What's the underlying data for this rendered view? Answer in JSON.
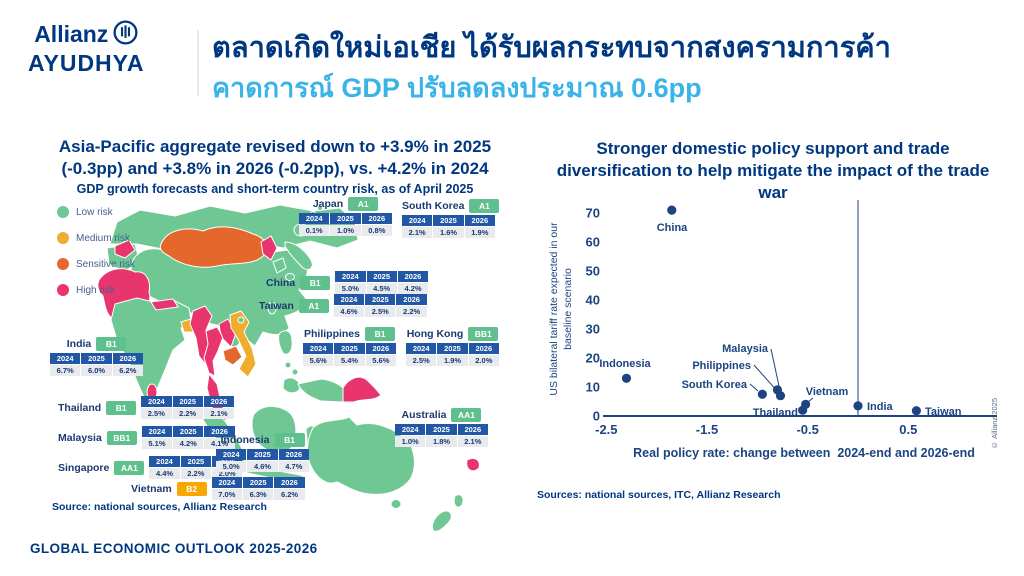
{
  "header": {
    "logo_line1": "Allianz",
    "logo_line2": "AYUDHYA",
    "title_line1": "ตลาดเกิดใหม่เอเชีย ได้รับผลกระทบจากสงครามการค้า",
    "title_line2": "คาดการณ์ GDP ปรับลดลงประมาณ 0.6pp"
  },
  "colors": {
    "navy": "#003781",
    "light_blue": "#3ab3e8",
    "chart_navy": "#1d4480",
    "table_header_blue": "#2157a4",
    "table_value_bg": "#e9eaee",
    "badge_green": "#5fc08d",
    "badge_amber": "#f6a800",
    "map_green": "#6fc894",
    "map_amber": "#f0ad2d",
    "map_orange": "#e4682c",
    "map_pink": "#e8356d"
  },
  "left_panel": {
    "title": "Asia-Pacific aggregate revised down to +3.9% in 2025 (-0.3pp) and +3.8% in 2026 (-0.2pp), vs. +4.2% in 2024",
    "subtitle": "GDP growth forecasts and short-term country risk, as of April 2025",
    "legend": [
      {
        "label": "Low risk",
        "color": "#6fc894"
      },
      {
        "label": "Medium risk",
        "color": "#f0ad2d"
      },
      {
        "label": "Sensitive risk",
        "color": "#e4682c"
      },
      {
        "label": "High risk",
        "color": "#e8356d"
      }
    ],
    "table_years": [
      "2024",
      "2025",
      "2026"
    ],
    "countries": [
      {
        "id": "japan",
        "name": "Japan",
        "rating": "A1",
        "rating_color": "green",
        "values": [
          "0.1%",
          "1.0%",
          "0.8%"
        ]
      },
      {
        "id": "south_korea",
        "name": "South Korea",
        "rating": "A1",
        "rating_color": "green",
        "values": [
          "2.1%",
          "1.6%",
          "1.9%"
        ]
      },
      {
        "id": "china",
        "name": "China",
        "rating": "B1",
        "rating_color": "green",
        "values": [
          "5.0%",
          "4.5%",
          "4.2%"
        ]
      },
      {
        "id": "taiwan",
        "name": "Taiwan",
        "rating": "A1",
        "rating_color": "green",
        "values": [
          "4.6%",
          "2.5%",
          "2.2%"
        ]
      },
      {
        "id": "philippines",
        "name": "Philippines",
        "rating": "B1",
        "rating_color": "green",
        "values": [
          "5.6%",
          "5.4%",
          "5.6%"
        ]
      },
      {
        "id": "hong_kong",
        "name": "Hong Kong",
        "rating": "BB1",
        "rating_color": "green",
        "values": [
          "2.5%",
          "1.9%",
          "2.0%"
        ]
      },
      {
        "id": "india",
        "name": "India",
        "rating": "B1",
        "rating_color": "green",
        "values": [
          "6.7%",
          "6.0%",
          "6.2%"
        ]
      },
      {
        "id": "thailand",
        "name": "Thailand",
        "rating": "B1",
        "rating_color": "green",
        "values": [
          "2.5%",
          "2.2%",
          "2.1%"
        ]
      },
      {
        "id": "malaysia",
        "name": "Malaysia",
        "rating": "BB1",
        "rating_color": "green",
        "values": [
          "5.1%",
          "4.2%",
          "4.1%"
        ]
      },
      {
        "id": "singapore",
        "name": "Singapore",
        "rating": "AA1",
        "rating_color": "green",
        "values": [
          "4.4%",
          "2.2%",
          "2.0%"
        ]
      },
      {
        "id": "indonesia",
        "name": "Indonesia",
        "rating": "B1",
        "rating_color": "green",
        "values": [
          "5.0%",
          "4.6%",
          "4.7%"
        ]
      },
      {
        "id": "vietnam",
        "name": "Vietnam",
        "rating": "B2",
        "rating_color": "amber",
        "values": [
          "7.0%",
          "6.3%",
          "6.2%"
        ]
      },
      {
        "id": "australia",
        "name": "Australia",
        "rating": "AA1",
        "rating_color": "green",
        "values": [
          "1.0%",
          "1.8%",
          "2.1%"
        ]
      }
    ],
    "source": "Source: national sources, Allianz Research"
  },
  "right_panel": {
    "title": "Stronger domestic policy support and trade diversification to help mitigate the impact of the trade war",
    "source": "Sources: national sources, ITC, Allianz Research",
    "copyright": "© Allianz 2025"
  },
  "chart_data": {
    "type": "scatter",
    "title": "Stronger domestic policy support and trade diversification to help mitigate the impact of the trade war",
    "xlabel": "Real policy rate: change between  2024-end and 2026-end",
    "ylabel": "US bilateral tariff rate expected in our baseline scenario",
    "ylabel_lines": [
      "US bilateral tariff rate expected in our",
      "baseline scenario"
    ],
    "xlim": [
      -2.75,
      1.05
    ],
    "ylim": [
      0,
      75
    ],
    "xticks": [
      -2.5,
      -1.5,
      -0.5,
      0.5
    ],
    "yticks": [
      0,
      10,
      20,
      30,
      40,
      50,
      60,
      70
    ],
    "zero_line_x": 0,
    "grid": false,
    "points": [
      {
        "label": "China",
        "x": -1.85,
        "y": 71
      },
      {
        "label": "Indonesia",
        "x": -2.3,
        "y": 13
      },
      {
        "label": "South Korea",
        "x": -0.95,
        "y": 7.5
      },
      {
        "label": "Malaysia",
        "x": -0.8,
        "y": 9
      },
      {
        "label": "Philippines",
        "x": -0.77,
        "y": 7
      },
      {
        "label": "Thailand",
        "x": -0.55,
        "y": 2
      },
      {
        "label": "Vietnam",
        "x": -0.52,
        "y": 4
      },
      {
        "label": "India",
        "x": 0.0,
        "y": 3.5
      },
      {
        "label": "Taiwan",
        "x": 0.58,
        "y": 1.8
      }
    ]
  },
  "footer": {
    "text": "GLOBAL ECONOMIC OUTLOOK 2025-2026"
  }
}
